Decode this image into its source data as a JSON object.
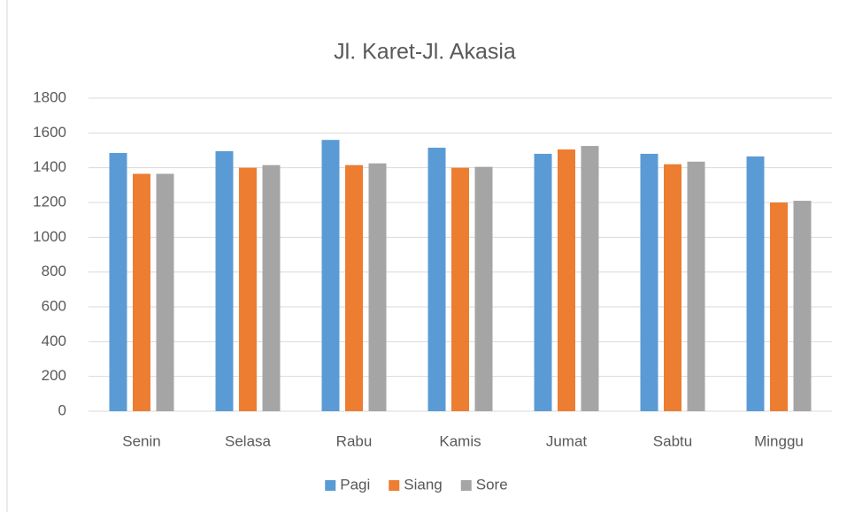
{
  "chart_data": {
    "type": "bar",
    "title": "Jl. Karet-Jl. Akasia",
    "categories": [
      "Senin",
      "Selasa",
      "Rabu",
      "Kamis",
      "Jumat",
      "Sabtu",
      "Minggu"
    ],
    "series": [
      {
        "name": "Pagi",
        "color": "#5b9bd5",
        "values": [
          1485,
          1495,
          1560,
          1515,
          1480,
          1480,
          1465
        ]
      },
      {
        "name": "Siang",
        "color": "#ed7d31",
        "values": [
          1365,
          1400,
          1415,
          1400,
          1505,
          1420,
          1200
        ]
      },
      {
        "name": "Sore",
        "color": "#a5a5a5",
        "values": [
          1365,
          1415,
          1425,
          1405,
          1525,
          1435,
          1210
        ]
      }
    ],
    "ylim": [
      0,
      1800
    ],
    "yticks": [
      0,
      200,
      400,
      600,
      800,
      1000,
      1200,
      1400,
      1600,
      1800
    ],
    "grid": true,
    "legend": "bottom"
  }
}
